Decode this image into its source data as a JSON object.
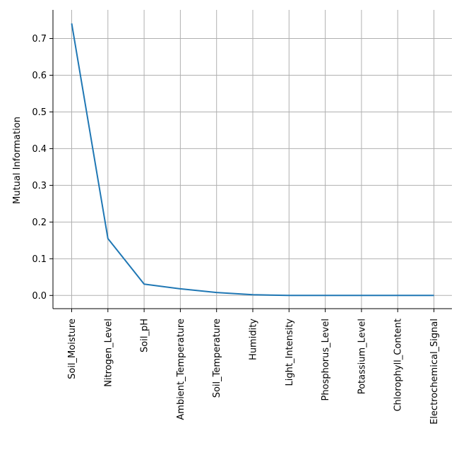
{
  "chart_data": {
    "type": "line",
    "title": "",
    "xlabel": "",
    "ylabel": "Mutual Information",
    "categories": [
      "Soil_Moisture",
      "Nitrogen_Level",
      "Soil_pH",
      "Ambient_Temperature",
      "Soil_Temperature",
      "Humidity",
      "Light_Intensity",
      "Phosphorus_Level",
      "Potassium_Level",
      "Chlorophyll_Content",
      "Electrochemical_Signal"
    ],
    "values": [
      0.741,
      0.155,
      0.031,
      0.018,
      0.008,
      0.002,
      0.0,
      0.0,
      0.0,
      0.0,
      0.0
    ],
    "yticks": [
      0.0,
      0.1,
      0.2,
      0.3,
      0.4,
      0.5,
      0.6,
      0.7
    ],
    "ytick_labels": [
      "0.0",
      "0.1",
      "0.2",
      "0.3",
      "0.4",
      "0.5",
      "0.6",
      "0.7"
    ],
    "ylim": [
      -0.036,
      0.778
    ],
    "grid": true,
    "line_color": "#1f77b4",
    "grid_color": "#b0b0b0"
  }
}
